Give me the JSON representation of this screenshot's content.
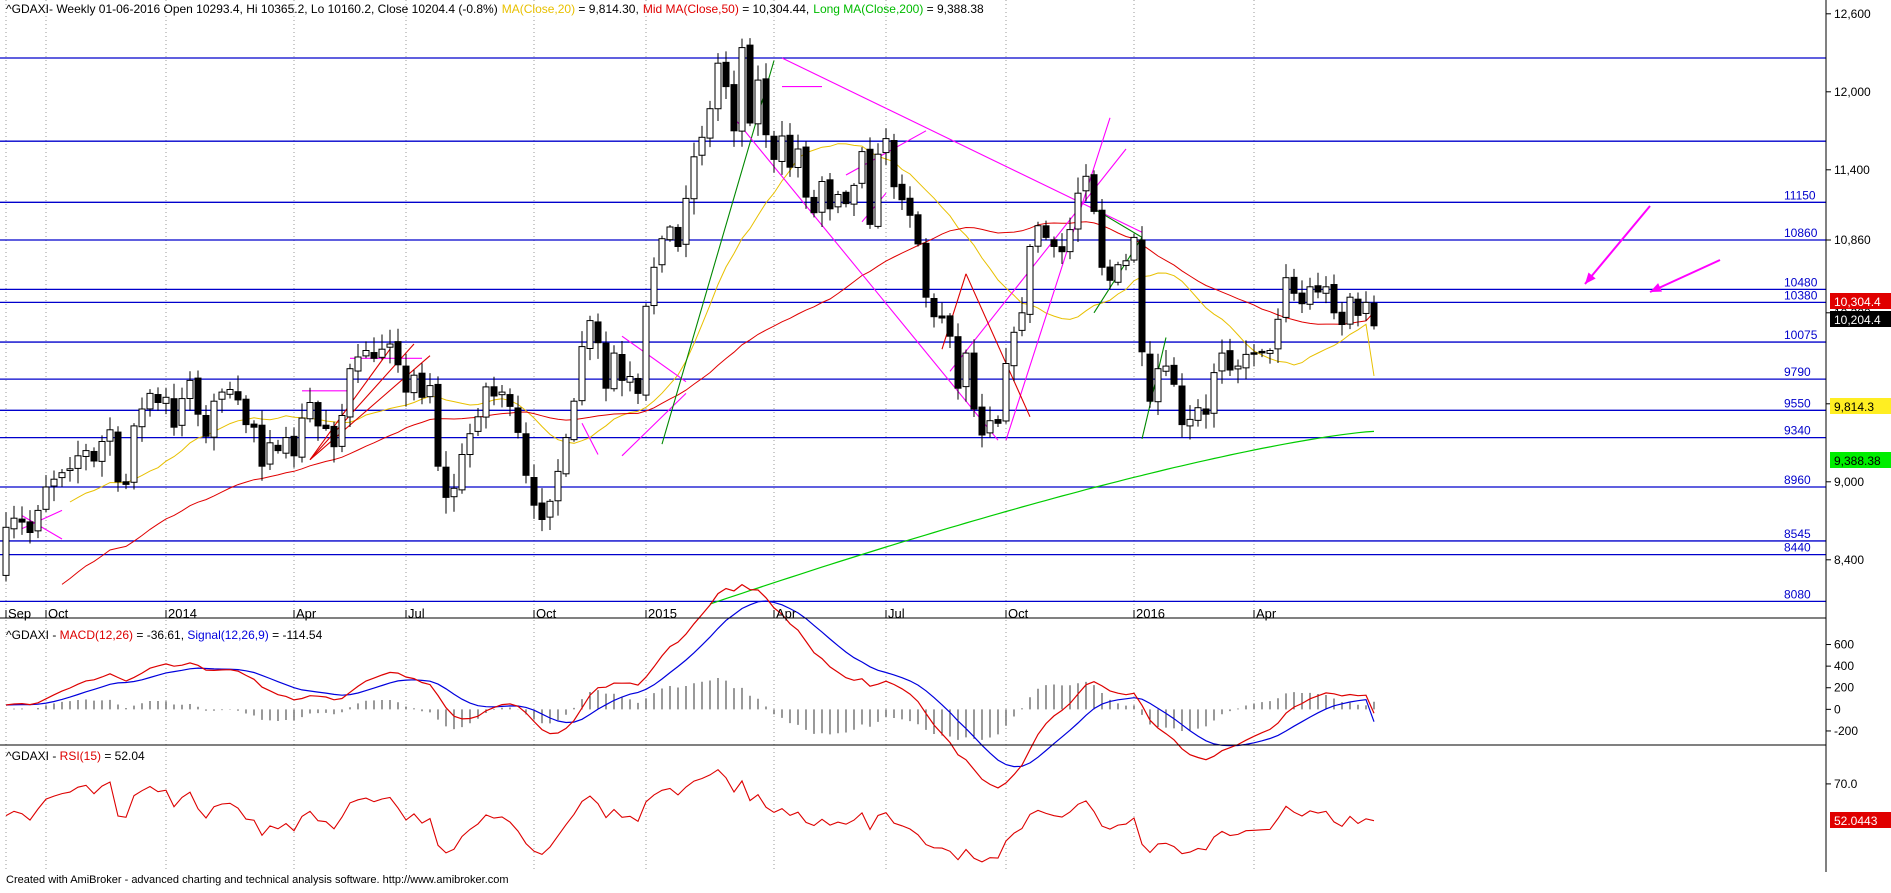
{
  "header": {
    "symbol": "^GDAXI",
    "info": "- Weekly 01-06-2016 Open 10293.4, Hi 10365.2, Lo 10160.2, Close 10204.4 (-0.8%)",
    "ma20_label": "MA(Close,20)",
    "ma20_value": " = 9,814.30,",
    "ma50_label": "Mid MA(Close,50)",
    "ma50_value": " = 10,304.44,",
    "ma200_label": "Long MA(Close,200)",
    "ma200_value": " = 9,388.38"
  },
  "macd_header": {
    "symbol": "^GDAXI",
    "dash": " - ",
    "macd_label": "MACD(12,26)",
    "macd_value": " = -36.61, ",
    "signal_label": "Signal(12,26,9)",
    "signal_value": " = -114.54"
  },
  "rsi_header": {
    "symbol": "^GDAXI",
    "dash": " - ",
    "rsi_label": "RSI(15)",
    "rsi_value": " = 52.04"
  },
  "footer_text": "Created with AmiBroker - advanced charting and technical analysis software. http://www.amibroker.com",
  "colors": {
    "ma20": "#e8c000",
    "ma50": "#e00000",
    "ma200": "#00cc00",
    "macd": "#dd0000",
    "signal": "#0000dd",
    "levels": "#0000cc",
    "trendlines": "#ff00ff",
    "redlines": "#dd0000",
    "greenlines": "#008800"
  },
  "badges": {
    "ma50": "10,304.4",
    "close": "10,204.4",
    "ma20": "9,814.3",
    "ma200": "9,388.38",
    "rsi": "52.0443"
  },
  "chart_data": [
    {
      "type": "candlestick",
      "timeframe": "weekly",
      "y_ticks": [
        "12,600",
        "12,000",
        "11,400",
        "10,860",
        "10,300",
        "9,600",
        "9,000",
        "8,400"
      ],
      "y_tick_values": [
        12600,
        12000,
        11400,
        10860,
        10300,
        9600,
        9000,
        8400
      ],
      "x_labels": [
        "Sep",
        "Oct",
        "2014",
        "Apr",
        "Jul",
        "Oct",
        "2015",
        "Apr",
        "Jul",
        "Oct",
        "2016",
        "Apr"
      ],
      "x_label_bars": [
        0,
        5,
        20,
        36,
        50,
        66,
        80,
        96,
        110,
        125,
        141,
        156
      ],
      "ylim": [
        8060,
        12660
      ],
      "levels": [
        {
          "label": "",
          "value": 12260
        },
        {
          "label": "",
          "value": 11620
        },
        {
          "label": "11150",
          "value": 11150
        },
        {
          "label": "10860",
          "value": 10860
        },
        {
          "label": "10480",
          "value": 10480
        },
        {
          "label": "10380",
          "value": 10380
        },
        {
          "label": "10075",
          "value": 10075
        },
        {
          "label": "9790",
          "value": 9790
        },
        {
          "label": "9550",
          "value": 9550
        },
        {
          "label": "9340",
          "value": 9340
        },
        {
          "label": "8960",
          "value": 8960
        },
        {
          "label": "8545",
          "value": 8545
        },
        {
          "label": "8440",
          "value": 8440
        },
        {
          "label": "8080",
          "value": 8080
        }
      ],
      "close_start": 8300,
      "closes": [
        8650,
        8720,
        8690,
        8610,
        8780,
        8960,
        9020,
        9070,
        9100,
        9200,
        9240,
        9160,
        9310,
        9400,
        9000,
        8980,
        9430,
        9560,
        9680,
        9610,
        9650,
        9420,
        9640,
        9780,
        9520,
        9350,
        9620,
        9690,
        9710,
        9630,
        9440,
        9420,
        9120,
        9300,
        9240,
        9340,
        9200,
        9490,
        9610,
        9430,
        9410,
        9270,
        9510,
        9870,
        9960,
        10010,
        9950,
        10020,
        10060,
        9900,
        9690,
        9820,
        9650,
        9740,
        9120,
        8880,
        8950,
        9210,
        9370,
        9500,
        9730,
        9660,
        9690,
        9580,
        9380,
        9050,
        8820,
        8710,
        8850,
        9080,
        9340,
        9620,
        10040,
        10240,
        10070,
        9720,
        9990,
        9780,
        9810,
        9680,
        10350,
        10650,
        10870,
        10960,
        10810,
        11180,
        11500,
        11650,
        11870,
        12220,
        12040,
        11700,
        12340,
        11760,
        12090,
        11670,
        11480,
        11660,
        11420,
        11560,
        11190,
        11070,
        11310,
        11100,
        11210,
        11140,
        11280,
        11540,
        10980,
        11520,
        11640,
        11270,
        11170,
        11050,
        10830,
        10420,
        10270,
        10260,
        10120,
        9720,
        9990,
        9560,
        9360,
        9470,
        9450,
        9910,
        10150,
        10300,
        10810,
        10970,
        10880,
        10810,
        10770,
        10940,
        11220,
        11350,
        11080,
        10650,
        10550,
        10670,
        10700,
        10880,
        10000,
        9620,
        9870,
        9890,
        9750,
        9440,
        9480,
        9570,
        9520,
        9840,
        9990,
        9860,
        9890,
        9980,
        9990,
        10000,
        10010,
        10250,
        10570,
        10450,
        10370,
        10500,
        10460,
        10500,
        10300,
        10210,
        10420,
        10280,
        10380,
        10200
      ],
      "ma20_start_bar": 8,
      "ma50_start_bar": 7,
      "ma200_start_bar": 88,
      "ma200_start_value": 8060,
      "ma200_end_value": 9388,
      "ma20_last": 9814.3,
      "ma50_last": 10304.44,
      "ma200_last": 9388.38,
      "last_close": 10204.4
    },
    {
      "type": "line",
      "title": "MACD(12,26)",
      "y_ticks": [
        "600",
        "400",
        "200",
        "0",
        "-200"
      ],
      "y_tick_values": [
        600,
        400,
        200,
        0,
        -200
      ],
      "ylim": [
        -330,
        790
      ],
      "series": [
        {
          "name": "MACD(12,26)",
          "last": -36.61
        },
        {
          "name": "Signal(12,26,9)",
          "last": -114.54
        }
      ]
    },
    {
      "type": "line",
      "title": "RSI(15)",
      "y_ticks": [
        "70.0"
      ],
      "y_tick_values": [
        70
      ],
      "ylim": [
        28,
        88
      ],
      "series": [
        {
          "name": "RSI(15)",
          "last": 52.04
        }
      ]
    }
  ]
}
